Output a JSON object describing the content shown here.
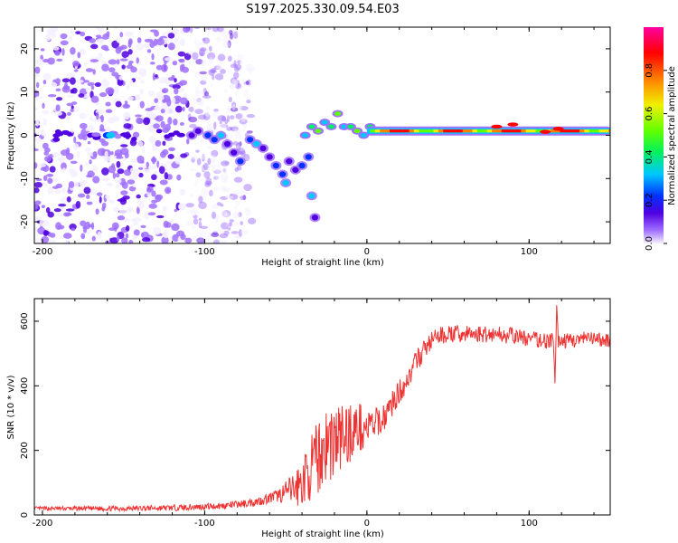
{
  "title": "S197.2025.330.09.54.E03",
  "colors": {
    "snr_line": "#ee3333",
    "axis": "#000000"
  },
  "chart_data": [
    {
      "type": "heatmap",
      "xlabel": "Height of straight line (km)",
      "ylabel": "Frequency (Hz)",
      "xlim": [
        -205,
        150
      ],
      "ylim": [
        -25,
        25
      ],
      "xticks": [
        -200,
        -100,
        0,
        100
      ],
      "yticks": [
        -20,
        -10,
        0,
        10,
        20
      ],
      "colorbar": {
        "label": "Normalized spectral amplitude",
        "range": [
          0,
          1
        ],
        "ticks": [
          "0.0",
          "0.2",
          "0.4",
          "0.6",
          "0.8"
        ],
        "colors": [
          "#f4f0ff",
          "#a070ff",
          "#5000e0",
          "#0030ff",
          "#00c8ff",
          "#00f060",
          "#60ff00",
          "#f0f000",
          "#ff8000",
          "#ff0000",
          "#ff00a0"
        ]
      },
      "features": {
        "noise_region_km": [
          -205,
          -70
        ],
        "dispersed_branch_km": [
          -100,
          -30
        ],
        "dispersed_branch_freq_hz": [
          0,
          -19
        ],
        "steady_tone_km": [
          0,
          150
        ],
        "steady_tone_freq_hz": 1
      }
    },
    {
      "type": "line",
      "xlabel": "Height of straight line (km)",
      "ylabel": "SNR (10 * v/v)",
      "xlim": [
        -205,
        150
      ],
      "ylim": [
        0,
        670
      ],
      "xticks": [
        -200,
        -100,
        0,
        100
      ],
      "yticks": [
        0,
        200,
        400,
        600
      ],
      "series": [
        {
          "name": "SNR",
          "x": [
            -205,
            -150,
            -120,
            -90,
            -75,
            -65,
            -55,
            -50,
            -45,
            -40,
            -35,
            -30,
            -25,
            -20,
            -15,
            -10,
            -5,
            0,
            5,
            10,
            15,
            20,
            25,
            30,
            35,
            40,
            45,
            50,
            60,
            70,
            80,
            90,
            100,
            110,
            115,
            116,
            117,
            118,
            125,
            135,
            150
          ],
          "y": [
            20,
            20,
            22,
            28,
            35,
            45,
            60,
            70,
            80,
            100,
            140,
            180,
            220,
            230,
            240,
            260,
            270,
            270,
            280,
            300,
            340,
            380,
            420,
            470,
            510,
            540,
            555,
            560,
            560,
            560,
            560,
            555,
            545,
            540,
            540,
            400,
            650,
            540,
            540,
            545,
            540
          ],
          "noise": [
            6,
            8,
            9,
            10,
            12,
            14,
            20,
            35,
            55,
            75,
            95,
            115,
            125,
            125,
            110,
            95,
            80,
            60,
            50,
            45,
            40,
            38,
            36,
            34,
            32,
            30,
            28,
            28,
            28,
            26,
            26,
            26,
            26,
            26,
            22,
            0,
            0,
            22,
            24,
            24,
            24
          ]
        }
      ]
    }
  ]
}
